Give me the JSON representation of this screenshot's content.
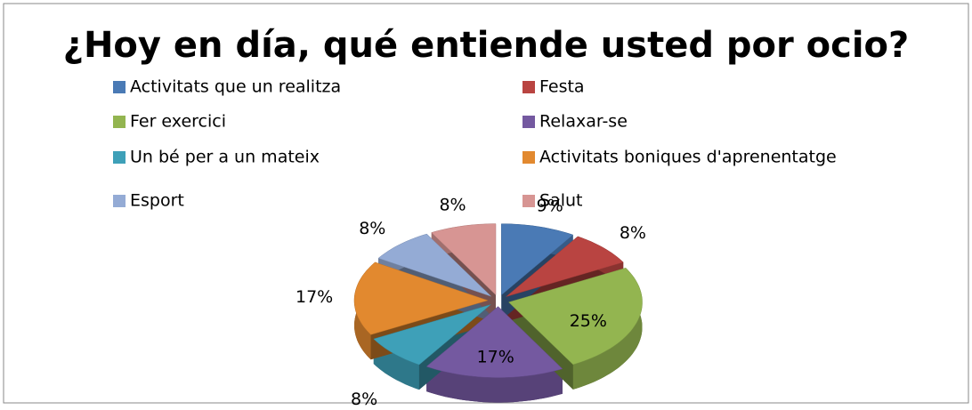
{
  "chart_data": {
    "type": "pie",
    "title": "¿Hoy en día, qué entiende usted por ocio?",
    "categories": [
      "Activitats que un realitza",
      "Festa",
      "Fer exercici",
      "Relaxar-se",
      "Un bé per a un mateix",
      "Activitats boniques d'aprenentatge",
      "Esport",
      "Salut"
    ],
    "values": [
      9,
      8,
      25,
      17,
      8,
      17,
      8,
      8
    ],
    "value_labels": [
      "9%",
      "8%",
      "25%",
      "17%",
      "8%",
      "17%",
      "8%",
      "8%"
    ],
    "colors": [
      "#4a7ab5",
      "#b94441",
      "#93b550",
      "#7459a0",
      "#3ea0b8",
      "#e2892f",
      "#94abd5",
      "#d79593"
    ],
    "legend": "top"
  }
}
